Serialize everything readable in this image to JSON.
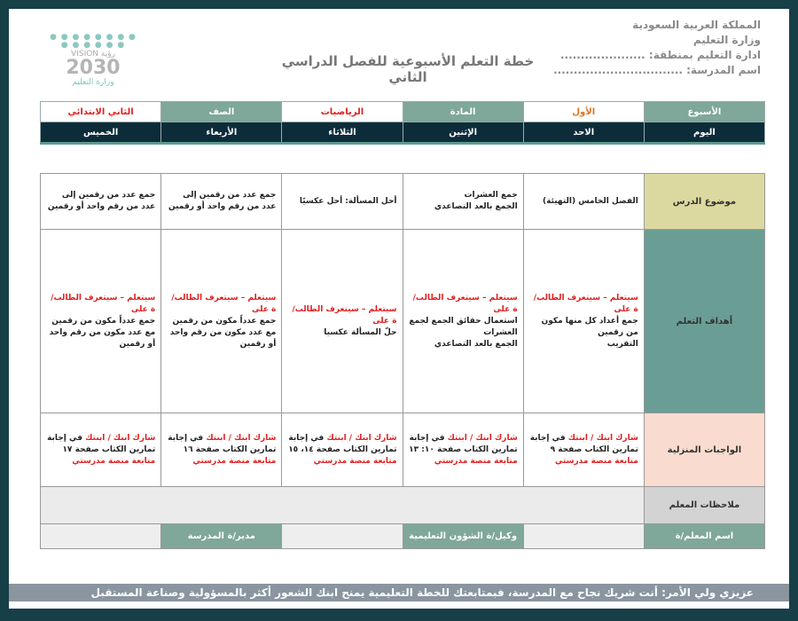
{
  "header": {
    "kingdom": "المملكة العربية السعودية",
    "ministry": "وزارة التعليم",
    "region": "ادارة التعليم بمنطقة: .....................",
    "school": "اسم المدرسة: ................................",
    "title": "خطة التعلم الأسبوعية للفصل الدراسي الثاني"
  },
  "logo": {
    "vision": "VISION رؤية",
    "year": "2030",
    "ministry": "وزارة التعليم"
  },
  "info": {
    "week_label": "الأسبوع",
    "week_value": "الأول",
    "subject_label": "المادة",
    "subject_value": "الرياضيات",
    "grade_label": "الصف",
    "grade_value": "الثاني الابتدائي"
  },
  "days": [
    "اليوم",
    "الاحد",
    "الإثنين",
    "الثلاثاء",
    "الأربعاء",
    "الخميس"
  ],
  "rows": {
    "topic": {
      "label": "موضوع الدرس",
      "cells": [
        "الفصل الخامس (التهيئة)",
        "جمع العشرات\nالجمع بالعد التصاعدي",
        "أحل المسألة: أحل عكسيًا",
        "جمع عدد من رقمين إلى عدد من رقم واحد أو رقمين",
        "جمع عدد من رقمين إلى عدد من رقم واحد أو رقمين"
      ]
    },
    "objectives": {
      "label": "أهداف التعلم",
      "prefix": "سيتعلم – سيتعرف الطالب/ة على",
      "cells": [
        "جمع أعداد كل منها مكون من رقمين\nالتقريب",
        "استعمال حقائق الجمع لجمع العشرات\nالجمع بالعد التصاعدي",
        "حلّ المسألة عكسيا",
        "جمع عدداً مكون من رقمين مع عدد مكون من رقم واحد أو رقمين",
        "جمع عدداً مكون من رقمين مع عدد مكون من رقم واحد أو رقمين"
      ]
    },
    "homework": {
      "label": "الواجبات المنزلية",
      "share": "شارك ابنك / ابنتك",
      "share_rest": " في إجابة",
      "follow": "متابعة منصة مدرستي",
      "cells": [
        "تمارين الكتاب صفحة ٩",
        "تمارين الكتاب صفحة ١٠: ١٣",
        "تمارين الكتاب صفحة ١٤، ١٥",
        "تمارين الكتاب صفحة ١٦",
        "تمارين الكتاب صفحة ١٧"
      ]
    },
    "notes": {
      "label": "ملاحظات المعلم"
    }
  },
  "signatures": {
    "teacher": "اسم المعلم/ة",
    "deputy": "وكيل/ة الشؤون التعليمية",
    "principal": "مدير/ة المدرسة"
  },
  "footer": "عزيزي ولي الأمر: أنت شريك نجاح مع المدرسة، فبمتابعتك للخطة التعليمية يمنح ابنك الشعور أكثر بالمسؤولية وصناعة المستقبل",
  "colors": {
    "frame": "#173f47",
    "header_green": "#7fa79a",
    "dark_row": "#0d2c3a",
    "topic": "#dcd9a0",
    "objectives": "#6a9e95",
    "homework": "#f9dccf",
    "accent_red": "#e02020"
  }
}
